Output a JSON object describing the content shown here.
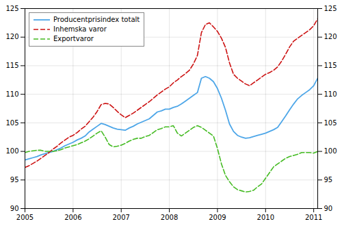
{
  "chart_data": {
    "type": "line",
    "x": [
      2005,
      2005.0833333333,
      2005.1666666667,
      2005.25,
      2005.3333333333,
      2005.4166666667,
      2005.5,
      2005.5833333333,
      2005.6666666667,
      2005.75,
      2005.8333333333,
      2005.9166666667,
      2006,
      2006.0833333333,
      2006.1666666667,
      2006.25,
      2006.3333333333,
      2006.4166666667,
      2006.5,
      2006.5833333333,
      2006.6666666667,
      2006.75,
      2006.8333333333,
      2006.9166666667,
      2007,
      2007.0833333333,
      2007.1666666667,
      2007.25,
      2007.3333333333,
      2007.4166666667,
      2007.5,
      2007.5833333333,
      2007.6666666667,
      2007.75,
      2007.8333333333,
      2007.9166666667,
      2008,
      2008.0833333333,
      2008.1666666667,
      2008.25,
      2008.3333333333,
      2008.4166666667,
      2008.5,
      2008.5833333333,
      2008.6666666667,
      2008.75,
      2008.8333333333,
      2008.9166666667,
      2009,
      2009.0833333333,
      2009.1666666667,
      2009.25,
      2009.3333333333,
      2009.4166666667,
      2009.5,
      2009.5833333333,
      2009.6666666667,
      2009.75,
      2009.8333333333,
      2009.9166666667,
      2010,
      2010.0833333333,
      2010.1666666667,
      2010.25,
      2010.3333333333,
      2010.4166666667,
      2010.5,
      2010.5833333333,
      2010.6666666667,
      2010.75,
      2010.8333333333,
      2010.9166666667,
      2011,
      2011.0833333333
    ],
    "series": [
      {
        "name": "Producentprisindex totalt",
        "color": "#4DA6E8",
        "line_style": "solid",
        "values": [
          98.5,
          98.7,
          98.9,
          99.1,
          99.4,
          99.6,
          99.8,
          100.0,
          100.3,
          100.6,
          101.0,
          101.3,
          101.6,
          102.0,
          102.3,
          102.7,
          103.4,
          103.9,
          104.4,
          104.9,
          104.7,
          104.4,
          104.1,
          103.9,
          103.8,
          103.7,
          104.1,
          104.4,
          104.8,
          105.1,
          105.4,
          105.7,
          106.3,
          106.9,
          107.1,
          107.4,
          107.4,
          107.7,
          107.9,
          108.3,
          108.8,
          109.3,
          109.8,
          110.3,
          112.8,
          113.1,
          112.8,
          112.2,
          111.0,
          109.3,
          107.2,
          104.8,
          103.5,
          102.8,
          102.5,
          102.3,
          102.4,
          102.6,
          102.8,
          103.0,
          103.2,
          103.5,
          103.8,
          104.2,
          105.2,
          106.2,
          107.3,
          108.3,
          109.2,
          109.8,
          110.3,
          110.8,
          111.5,
          112.8
        ]
      },
      {
        "name": "Inhemska varor",
        "color": "#CC1111",
        "line_style": "dashed",
        "values": [
          97.2,
          97.5,
          97.9,
          98.3,
          98.8,
          99.3,
          99.8,
          100.4,
          100.9,
          101.5,
          102.0,
          102.5,
          102.8,
          103.3,
          103.9,
          104.4,
          105.2,
          106.0,
          107.0,
          108.2,
          108.4,
          108.3,
          107.7,
          107.0,
          106.4,
          105.9,
          106.3,
          106.7,
          107.2,
          107.7,
          108.2,
          108.7,
          109.3,
          109.9,
          110.4,
          110.9,
          111.3,
          112.0,
          112.5,
          113.1,
          113.6,
          114.2,
          115.3,
          116.8,
          120.8,
          122.2,
          122.5,
          121.8,
          121.0,
          119.8,
          118.2,
          115.5,
          113.5,
          112.8,
          112.3,
          111.8,
          111.5,
          112.0,
          112.5,
          113.0,
          113.5,
          113.8,
          114.2,
          114.8,
          115.8,
          117.0,
          118.3,
          119.3,
          119.8,
          120.3,
          120.8,
          121.3,
          122.0,
          123.2
        ]
      },
      {
        "name": "Exportvaror",
        "color": "#44BB22",
        "line_style": "dashed",
        "values": [
          99.8,
          100.0,
          100.1,
          100.2,
          100.2,
          100.0,
          100.0,
          100.0,
          100.1,
          100.3,
          100.6,
          100.8,
          101.0,
          101.2,
          101.5,
          101.8,
          102.2,
          102.7,
          103.2,
          103.6,
          102.5,
          101.2,
          100.8,
          100.9,
          101.1,
          101.4,
          101.8,
          102.1,
          102.3,
          102.3,
          102.6,
          102.8,
          103.3,
          103.8,
          104.0,
          104.3,
          104.3,
          104.5,
          103.2,
          102.7,
          103.2,
          103.7,
          104.2,
          104.5,
          104.2,
          103.7,
          103.2,
          102.7,
          100.5,
          97.8,
          95.8,
          94.7,
          93.8,
          93.3,
          93.1,
          92.9,
          93.0,
          93.2,
          93.8,
          94.3,
          95.3,
          96.3,
          97.3,
          97.8,
          98.3,
          98.8,
          99.1,
          99.3,
          99.5,
          99.8,
          99.8,
          99.8,
          99.7,
          100.0
        ]
      }
    ],
    "xlim": [
      2005,
      2011.0833333333
    ],
    "xticks": [
      2005,
      2006,
      2007,
      2008,
      2009,
      2010,
      2011
    ],
    "ylim": [
      90,
      125
    ],
    "yticks": [
      90,
      95,
      100,
      105,
      110,
      115,
      120,
      125
    ],
    "y2lim": [
      90,
      125
    ],
    "y2ticks": [
      90,
      95,
      100,
      105,
      110,
      115,
      120,
      125
    ],
    "grid": true,
    "legend": "upper left"
  }
}
